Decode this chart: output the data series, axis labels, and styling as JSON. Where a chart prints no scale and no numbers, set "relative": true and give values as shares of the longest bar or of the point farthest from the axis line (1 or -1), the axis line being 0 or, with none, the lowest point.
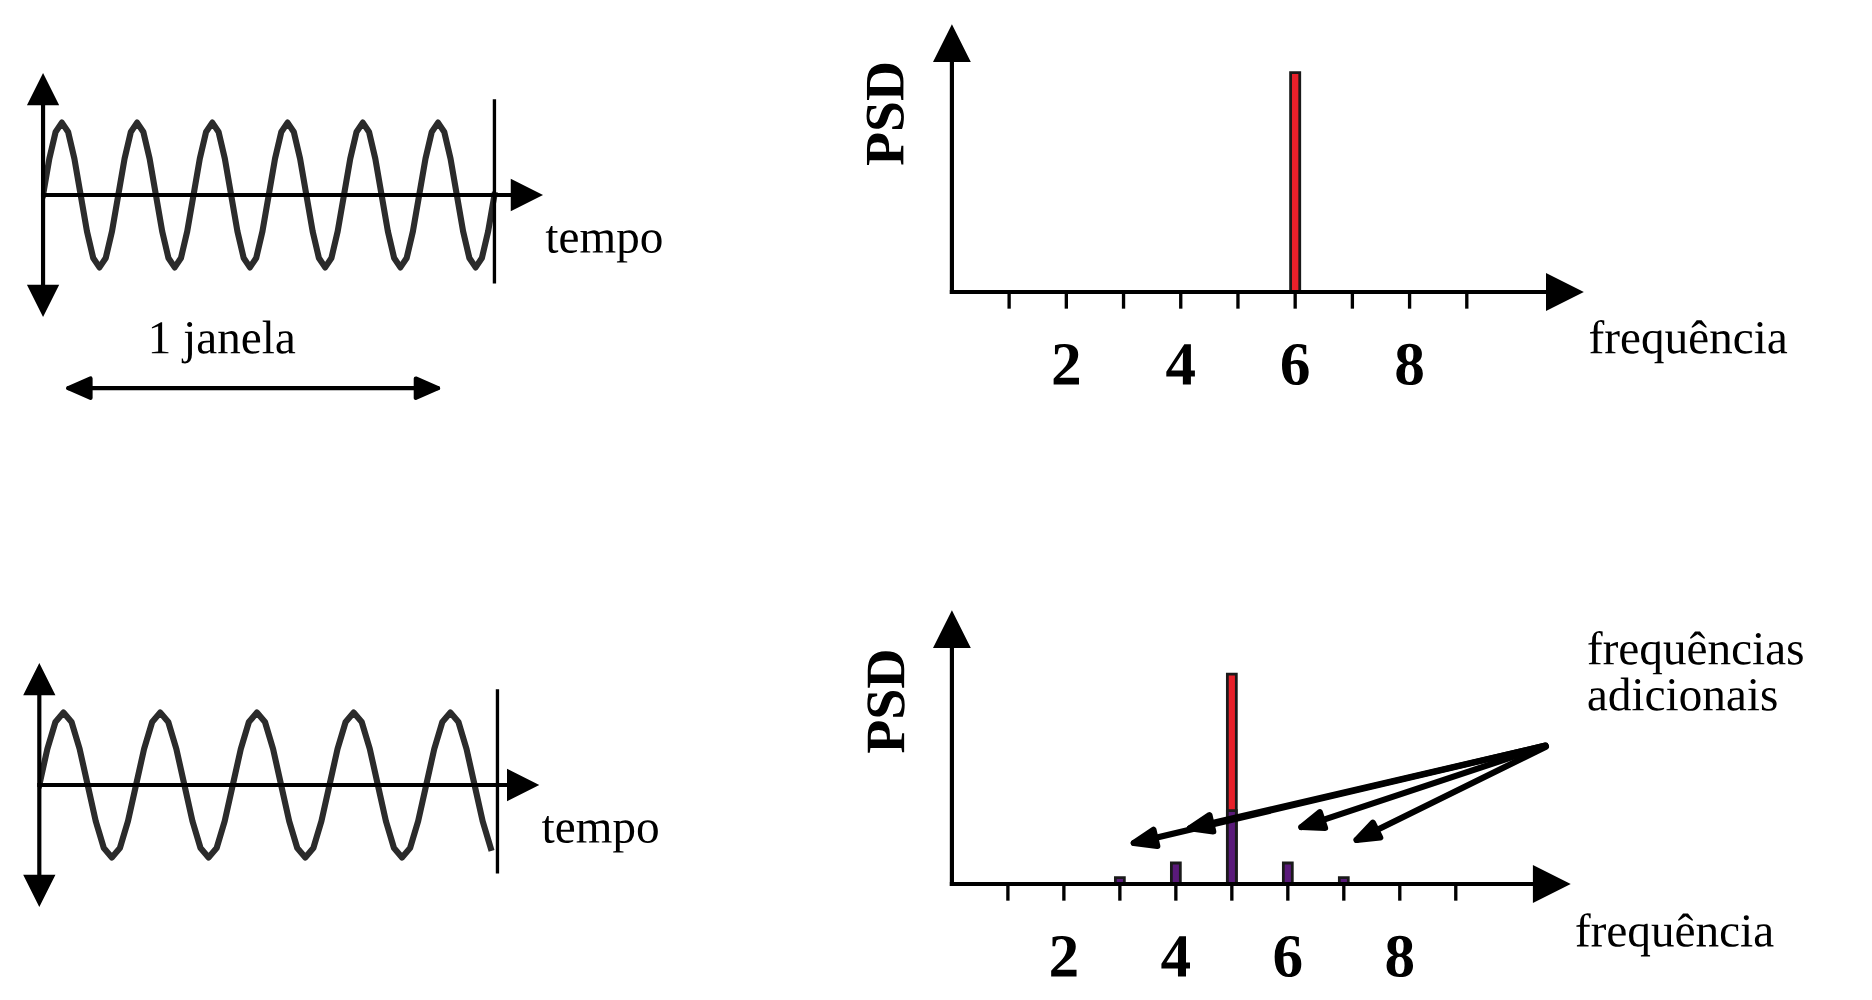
{
  "chart_data": [
    {
      "type": "line",
      "xlabel": "tempo",
      "relative": true,
      "color": "#2b2b2b",
      "annotations": [
        "1 janela"
      ],
      "categories": [
        null,
        null,
        null,
        null,
        null,
        null,
        null,
        null,
        null,
        null,
        null,
        null,
        null,
        null,
        null,
        null,
        null,
        null,
        null,
        null,
        null,
        null,
        null,
        null,
        null,
        null,
        null,
        null,
        null,
        null,
        null,
        null,
        null,
        null,
        null,
        null,
        null,
        null,
        null,
        null,
        null,
        null,
        null,
        null,
        null,
        null,
        null,
        null,
        null,
        null,
        null,
        null,
        null,
        null,
        null,
        null,
        null,
        null,
        null,
        null,
        null,
        null,
        null,
        null,
        null,
        null,
        null,
        null,
        null,
        null,
        null,
        null,
        null
      ],
      "values": [
        0,
        0.5,
        0.87,
        1,
        0.87,
        0.5,
        0,
        -0.5,
        -0.87,
        -1,
        -0.87,
        -0.5,
        0,
        0.5,
        0.87,
        1,
        0.87,
        0.5,
        0,
        -0.5,
        -0.87,
        -1,
        -0.87,
        -0.5,
        0,
        0.5,
        0.87,
        1,
        0.87,
        0.5,
        0,
        -0.5,
        -0.87,
        -1,
        -0.87,
        -0.5,
        0,
        0.5,
        0.87,
        1,
        0.87,
        0.5,
        0,
        -0.5,
        -0.87,
        -1,
        -0.87,
        -0.5,
        0,
        0.5,
        0.87,
        1,
        0.87,
        0.5,
        0,
        -0.5,
        -0.87,
        -1,
        -0.87,
        -0.5,
        0,
        0.5,
        0.87,
        1,
        0.87,
        0.5,
        0,
        -0.5,
        -0.87,
        -1,
        -0.87,
        -0.5,
        0
      ]
    },
    {
      "type": "bar",
      "ylabel": "PSD",
      "xlabel": "frequência",
      "relative": true,
      "tick_labels": "x",
      "xlim": [
        0,
        10.7
      ],
      "xticks": [
        {
          "value": 1,
          "label": null
        },
        2,
        {
          "value": 3,
          "label": null
        },
        4,
        {
          "value": 5,
          "label": null
        },
        6,
        {
          "value": 7,
          "label": null
        },
        8,
        {
          "value": 9,
          "label": null
        }
      ],
      "series": [
        {
          "color": "#e8202a",
          "x": [
            6
          ],
          "values": [
            1
          ]
        }
      ]
    },
    {
      "type": "line",
      "xlabel": "tempo",
      "relative": true,
      "color": "#2b2b2b",
      "categories": [
        null,
        null,
        null,
        null,
        null,
        null,
        null,
        null,
        null,
        null,
        null,
        null,
        null,
        null,
        null,
        null,
        null,
        null,
        null,
        null,
        null,
        null,
        null,
        null,
        null,
        null,
        null,
        null,
        null,
        null,
        null,
        null,
        null,
        null,
        null,
        null,
        null,
        null,
        null,
        null,
        null,
        null,
        null,
        null,
        null,
        null,
        null,
        null,
        null,
        null,
        null,
        null,
        null,
        null,
        null,
        null,
        null
      ],
      "values": [
        0,
        0.5,
        0.87,
        1,
        0.87,
        0.5,
        0,
        -0.5,
        -0.87,
        -1,
        -0.87,
        -0.5,
        0,
        0.5,
        0.87,
        1,
        0.87,
        0.5,
        0,
        -0.5,
        -0.87,
        -1,
        -0.87,
        -0.5,
        0,
        0.5,
        0.87,
        1,
        0.87,
        0.5,
        0,
        -0.5,
        -0.87,
        -1,
        -0.87,
        -0.5,
        0,
        0.5,
        0.87,
        1,
        0.87,
        0.5,
        0,
        -0.5,
        -0.87,
        -1,
        -0.87,
        -0.5,
        0,
        0.5,
        0.87,
        1,
        0.87,
        0.5,
        0,
        -0.5,
        -0.87
      ]
    },
    {
      "type": "bar",
      "ylabel": "PSD",
      "xlabel": "frequência",
      "relative": true,
      "tick_labels": "x",
      "xlim": [
        0,
        10.7
      ],
      "xticks": [
        {
          "value": 1,
          "label": null
        },
        2,
        {
          "value": 3,
          "label": null
        },
        4,
        {
          "value": 5,
          "label": null
        },
        6,
        {
          "value": 7,
          "label": null
        },
        8,
        {
          "value": 9,
          "label": null
        }
      ],
      "annotations": [
        "frequências\nadicionais"
      ],
      "series": [
        {
          "color": "#e8202a",
          "x": [
            5
          ],
          "values": [
            1
          ]
        },
        {
          "color": "#5a1a7a",
          "x": [
            3,
            4,
            5,
            6,
            7
          ],
          "values": [
            0.03,
            0.1,
            0.35,
            0.1,
            0.03
          ]
        }
      ]
    }
  ]
}
